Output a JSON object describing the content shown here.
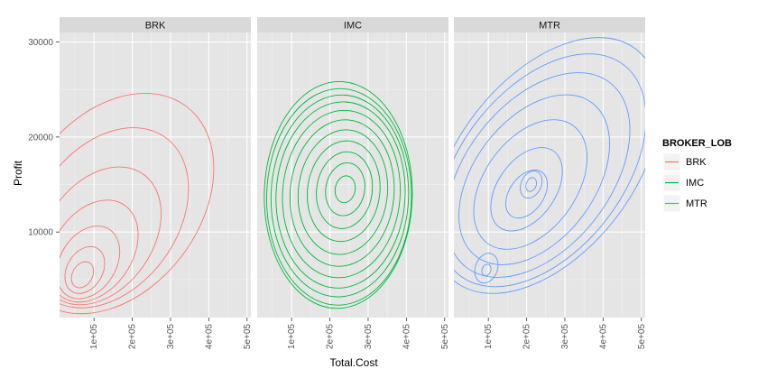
{
  "chart_data": {
    "type": "contour",
    "xlabel": "Total.Cost",
    "ylabel": "Profit",
    "xlim": [
      10000,
      510000
    ],
    "ylim": [
      1000,
      31000
    ],
    "x_ticks": [
      100000,
      200000,
      300000,
      400000,
      500000
    ],
    "x_tick_labels": [
      "1e+05",
      "2e+05",
      "3e+05",
      "4e+05",
      "5e+05"
    ],
    "y_ticks": [
      10000,
      20000,
      30000
    ],
    "y_tick_labels": [
      "10000",
      "20000",
      "30000"
    ],
    "grid": true,
    "legend": {
      "title": "BROKER_LOB",
      "placement": "right",
      "entries": [
        {
          "label": "BRK",
          "color": "#F8766D"
        },
        {
          "label": "IMC",
          "color": "#00BA38"
        },
        {
          "label": "MTR",
          "color": "#619CFF"
        }
      ]
    },
    "facets": [
      {
        "name": "BRK",
        "color": "#F8766D",
        "contours": [
          {
            "cx": 70000,
            "cy": 5500,
            "rx": 13000,
            "ry": 1800,
            "rot": -60
          },
          {
            "cx": 76000,
            "cy": 6000,
            "rx": 24000,
            "ry": 3200,
            "rot": -60
          },
          {
            "cx": 85000,
            "cy": 6800,
            "rx": 38000,
            "ry": 5000,
            "rot": -58
          },
          {
            "cx": 98000,
            "cy": 8000,
            "rx": 55000,
            "ry": 7000,
            "rot": -56
          },
          {
            "cx": 115000,
            "cy": 9600,
            "rx": 75000,
            "ry": 9500,
            "rot": -55
          },
          {
            "cx": 135000,
            "cy": 11500,
            "rx": 98000,
            "ry": 12500,
            "rot": -54
          },
          {
            "cx": 150000,
            "cy": 13000,
            "rx": 118000,
            "ry": 15500,
            "rot": -53
          }
        ]
      },
      {
        "name": "IMC",
        "color": "#00BA38",
        "contours": [
          {
            "cx": 240000,
            "cy": 14500,
            "rx": 12000,
            "ry": 1800,
            "rot": -80
          },
          {
            "cx": 240000,
            "cy": 14500,
            "rx": 24000,
            "ry": 3500,
            "rot": -80
          },
          {
            "cx": 238000,
            "cy": 14400,
            "rx": 36000,
            "ry": 5000,
            "rot": -82
          },
          {
            "cx": 236000,
            "cy": 14300,
            "rx": 48000,
            "ry": 6500,
            "rot": -83
          },
          {
            "cx": 234000,
            "cy": 14200,
            "rx": 60000,
            "ry": 8000,
            "rot": -84
          },
          {
            "cx": 232000,
            "cy": 14100,
            "rx": 72000,
            "ry": 9300,
            "rot": -85
          },
          {
            "cx": 230000,
            "cy": 14000,
            "rx": 84000,
            "ry": 10500,
            "rot": -86
          },
          {
            "cx": 228000,
            "cy": 13900,
            "rx": 96000,
            "ry": 11500,
            "rot": -87
          },
          {
            "cx": 226000,
            "cy": 13800,
            "rx": 108000,
            "ry": 12200,
            "rot": -88
          },
          {
            "cx": 224000,
            "cy": 13700,
            "rx": 120000,
            "ry": 12800,
            "rot": -89
          },
          {
            "cx": 222000,
            "cy": 13900,
            "rx": 132000,
            "ry": 13000,
            "rot": -89
          }
        ]
      },
      {
        "name": "MTR",
        "color": "#619CFF",
        "contours": [
          {
            "cx": 212000,
            "cy": 15000,
            "rx": 7000,
            "ry": 900,
            "rot": -70
          },
          {
            "cx": 212000,
            "cy": 15000,
            "rx": 14000,
            "ry": 1800,
            "rot": -65
          },
          {
            "cx": 95000,
            "cy": 6000,
            "rx": 5000,
            "ry": 800,
            "rot": -70
          },
          {
            "cx": 95000,
            "cy": 6200,
            "rx": 14000,
            "ry": 2000,
            "rot": -70
          },
          {
            "cx": 200000,
            "cy": 14000,
            "rx": 32000,
            "ry": 3000,
            "rot": -55
          },
          {
            "cx": 200000,
            "cy": 14500,
            "rx": 60000,
            "ry": 5000,
            "rot": -55
          },
          {
            "cx": 210000,
            "cy": 15000,
            "rx": 90000,
            "ry": 8000,
            "rot": -54
          },
          {
            "cx": 220000,
            "cy": 15500,
            "rx": 120000,
            "ry": 10500,
            "rot": -53
          },
          {
            "cx": 230000,
            "cy": 16000,
            "rx": 150000,
            "ry": 12500,
            "rot": -52
          },
          {
            "cx": 240000,
            "cy": 16500,
            "rx": 175000,
            "ry": 14000,
            "rot": -52
          },
          {
            "cx": 250000,
            "cy": 17000,
            "rx": 200000,
            "ry": 15000,
            "rot": -52
          }
        ]
      }
    ]
  }
}
